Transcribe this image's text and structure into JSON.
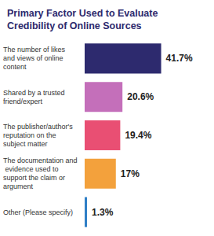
{
  "chart_data": {
    "type": "bar",
    "orientation": "horizontal",
    "title": "Primary Factor Used to Evaluate Credibility of Online Sources",
    "categories": [
      "The number of likes and views of online content",
      "Shared by a trusted friend/expert",
      "The publisher/author's reputation on the subject matter",
      "The documentation and evidence used to support the claim or argument",
      "Other (Please specify)"
    ],
    "values": [
      41.7,
      20.6,
      19.4,
      17,
      1.3
    ],
    "value_labels": [
      "41.7%",
      "20.6%",
      "19.4%",
      "17%",
      "1.3%"
    ],
    "colors": [
      "#2d2a6e",
      "#c46fba",
      "#e94f73",
      "#f3a13c",
      "#2f7fc6"
    ],
    "data_labels": true,
    "tick_labels": "y",
    "grid": false
  }
}
